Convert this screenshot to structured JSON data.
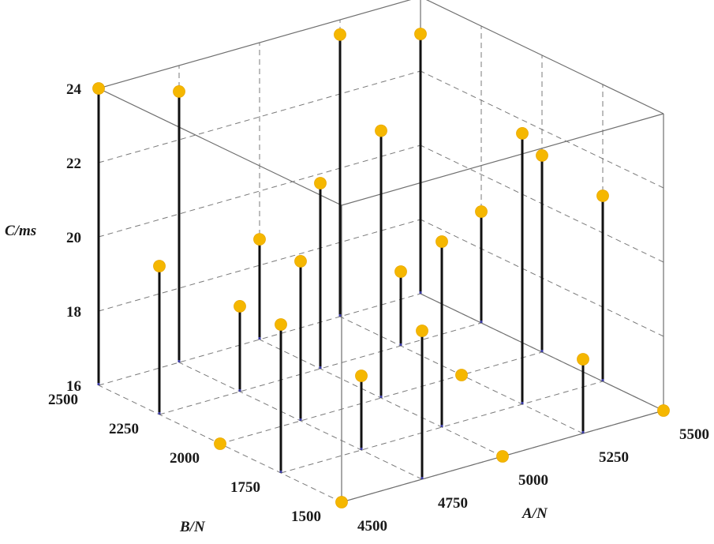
{
  "chart_data": {
    "type": "scatter",
    "subtype": "3d-stem",
    "xlabel": "A/N",
    "ylabel": "B/N",
    "zlabel": "C/ms",
    "x_ticks": [
      "4500",
      "4750",
      "5000",
      "5250",
      "5500"
    ],
    "y_ticks": [
      "1500",
      "1750",
      "2000",
      "2250",
      "2500"
    ],
    "z_ticks": [
      "16",
      "18",
      "20",
      "22",
      "24"
    ],
    "xlim": [
      4500,
      5500
    ],
    "ylim": [
      1500,
      2500
    ],
    "zlim": [
      16,
      24
    ],
    "grid": true,
    "marker_color": "#F5B700",
    "stem_color": "#111111",
    "points": [
      {
        "x": 4500,
        "y": 1500,
        "z": 16.0
      },
      {
        "x": 4500,
        "y": 1750,
        "z": 20.0
      },
      {
        "x": 4500,
        "y": 2000,
        "z": 16.0
      },
      {
        "x": 4500,
        "y": 2250,
        "z": 20.0
      },
      {
        "x": 4500,
        "y": 2500,
        "z": 24.0
      },
      {
        "x": 4750,
        "y": 1500,
        "z": 20.0
      },
      {
        "x": 4750,
        "y": 1750,
        "z": 18.0
      },
      {
        "x": 4750,
        "y": 2000,
        "z": 20.3
      },
      {
        "x": 4750,
        "y": 2250,
        "z": 18.3
      },
      {
        "x": 4750,
        "y": 2500,
        "z": 23.3
      },
      {
        "x": 5000,
        "y": 1500,
        "z": 16.0
      },
      {
        "x": 5000,
        "y": 1750,
        "z": 21.0
      },
      {
        "x": 5000,
        "y": 2000,
        "z": 23.2
      },
      {
        "x": 5000,
        "y": 2250,
        "z": 21.0
      },
      {
        "x": 5000,
        "y": 2500,
        "z": 18.7
      },
      {
        "x": 5250,
        "y": 1500,
        "z": 18.0
      },
      {
        "x": 5250,
        "y": 1750,
        "z": 23.3
      },
      {
        "x": 5250,
        "y": 2000,
        "z": 16.0
      },
      {
        "x": 5250,
        "y": 2250,
        "z": 18.0
      },
      {
        "x": 5250,
        "y": 2500,
        "z": 23.6
      },
      {
        "x": 5500,
        "y": 1500,
        "z": 16.0
      },
      {
        "x": 5500,
        "y": 1750,
        "z": 21.0
      },
      {
        "x": 5500,
        "y": 2000,
        "z": 21.3
      },
      {
        "x": 5500,
        "y": 2250,
        "z": 19.0
      },
      {
        "x": 5500,
        "y": 2500,
        "z": 23.0
      }
    ]
  }
}
